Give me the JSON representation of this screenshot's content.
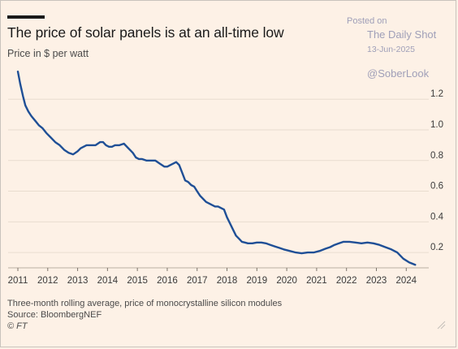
{
  "chart_data": {
    "type": "line",
    "title": "The price of solar panels is at an all-time low",
    "ylabel": "Price in $ per watt",
    "xlim": [
      2011,
      2024.4
    ],
    "ylim": [
      0.1,
      1.36
    ],
    "x_ticks": [
      2011,
      2012,
      2013,
      2014,
      2015,
      2016,
      2017,
      2018,
      2019,
      2020,
      2021,
      2022,
      2023,
      2024
    ],
    "x_tick_labels": [
      "2011",
      "2012",
      "2013",
      "2014",
      "2015",
      "2016",
      "2017",
      "2018",
      "2019",
      "2020",
      "2021",
      "2022",
      "2023",
      "2024"
    ],
    "y_ticks": [
      0.2,
      0.4,
      0.6,
      0.8,
      1.0,
      1.2
    ],
    "y_tick_labels": [
      "0.2",
      "0.4",
      "0.6",
      "0.8",
      "1.0",
      "1.2"
    ],
    "grid": true,
    "line_color": "#1f4f96",
    "series": [
      {
        "x": [
          2011.0,
          2011.08,
          2011.17,
          2011.25,
          2011.35,
          2011.45,
          2011.58,
          2011.7,
          2011.83,
          2011.95,
          2012.1,
          2012.25,
          2012.4,
          2012.55,
          2012.7,
          2012.85,
          2013.0,
          2013.1,
          2013.2,
          2013.3,
          2013.45,
          2013.6,
          2013.75,
          2013.85,
          2013.95,
          2014.05,
          2014.15,
          2014.25,
          2014.4,
          2014.55,
          2014.7,
          2014.85,
          2014.95,
          2015.05,
          2015.15,
          2015.3,
          2015.45,
          2015.6,
          2015.75,
          2015.9,
          2016.0,
          2016.1,
          2016.2,
          2016.3,
          2016.4,
          2016.5,
          2016.6,
          2016.7,
          2016.8,
          2016.9,
          2017.0,
          2017.1,
          2017.2,
          2017.3,
          2017.4,
          2017.5,
          2017.6,
          2017.7,
          2017.8,
          2017.9,
          2018.0,
          2018.1,
          2018.2,
          2018.3,
          2018.4,
          2018.5,
          2018.6,
          2018.7,
          2018.85,
          2019.0,
          2019.15,
          2019.3,
          2019.45,
          2019.6,
          2019.75,
          2019.9,
          2020.1,
          2020.3,
          2020.5,
          2020.7,
          2020.9,
          2021.1,
          2021.3,
          2021.45,
          2021.6,
          2021.75,
          2021.9,
          2022.1,
          2022.3,
          2022.5,
          2022.7,
          2022.9,
          2023.1,
          2023.3,
          2023.5,
          2023.7,
          2023.9,
          2024.1,
          2024.3
        ],
        "y": [
          1.38,
          1.3,
          1.22,
          1.16,
          1.12,
          1.09,
          1.06,
          1.03,
          1.01,
          0.98,
          0.95,
          0.92,
          0.9,
          0.87,
          0.85,
          0.84,
          0.86,
          0.88,
          0.89,
          0.9,
          0.9,
          0.9,
          0.92,
          0.92,
          0.9,
          0.89,
          0.89,
          0.9,
          0.9,
          0.91,
          0.88,
          0.85,
          0.82,
          0.81,
          0.81,
          0.8,
          0.8,
          0.8,
          0.78,
          0.76,
          0.76,
          0.77,
          0.78,
          0.79,
          0.77,
          0.72,
          0.67,
          0.66,
          0.64,
          0.63,
          0.6,
          0.57,
          0.55,
          0.53,
          0.52,
          0.51,
          0.5,
          0.5,
          0.49,
          0.48,
          0.43,
          0.39,
          0.35,
          0.31,
          0.29,
          0.27,
          0.265,
          0.26,
          0.26,
          0.265,
          0.265,
          0.26,
          0.25,
          0.24,
          0.23,
          0.22,
          0.21,
          0.2,
          0.195,
          0.2,
          0.2,
          0.21,
          0.225,
          0.235,
          0.25,
          0.26,
          0.27,
          0.27,
          0.265,
          0.26,
          0.265,
          0.26,
          0.25,
          0.235,
          0.22,
          0.2,
          0.16,
          0.135,
          0.12
        ]
      }
    ],
    "annotations": [
      "Three-month rolling average, price of monocrystalline silicon modules",
      "Source: BloombergNEF",
      "© FT"
    ]
  },
  "watermark": {
    "posted": "Posted on",
    "name": "The Daily Shot",
    "date": "13-Jun-2025",
    "handle": "@SoberLook"
  }
}
